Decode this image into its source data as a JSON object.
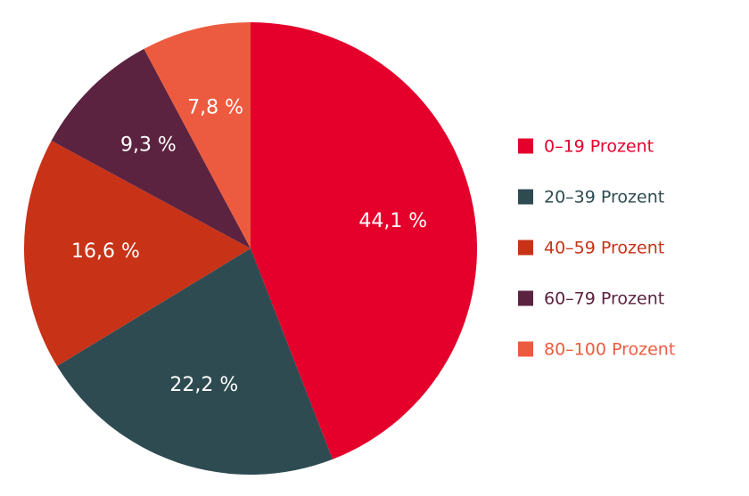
{
  "chart_data": {
    "type": "pie",
    "categories": [
      "0–19 Prozent",
      "20–39 Prozent",
      "40–59 Prozent",
      "60–79 Prozent",
      "80–100 Prozent"
    ],
    "values": [
      44.1,
      22.2,
      16.6,
      9.3,
      7.8
    ],
    "value_labels": [
      "44,1 %",
      "22,2 %",
      "16,6 %",
      "9,3 %",
      "7,8 %"
    ],
    "colors": [
      "#e4002b",
      "#2e4b51",
      "#c83217",
      "#5b2340",
      "#ec5b3f"
    ],
    "start_angle_deg": 0,
    "direction": "clockwise",
    "legend_position": "right"
  }
}
